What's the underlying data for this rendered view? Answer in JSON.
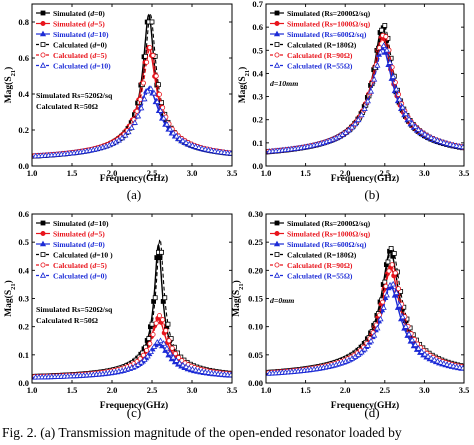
{
  "caption": "Fig. 2.   (a) Transmission magnitude of the open-ended resonator loaded by",
  "chart_data": [
    {
      "type": "line",
      "panel_label": "(a)",
      "xlabel": "Frequency(GHz)",
      "ylabel": "Mag(S21)",
      "xlim": [
        1.0,
        3.5
      ],
      "ylim": [
        0.0,
        0.9
      ],
      "xticks": [
        1.0,
        1.5,
        2.0,
        2.5,
        3.0,
        3.5
      ],
      "yticks": [
        0.0,
        0.2,
        0.4,
        0.6,
        0.8
      ],
      "tick_decimals": 1,
      "annotations": [
        "Simulated Rs=520Ω/sq",
        "Calculated R=50Ω"
      ],
      "legend": "top-left",
      "series": [
        {
          "name": "Simulated (d=0)",
          "name_parts": [
            "Simulated (",
            "d",
            "=0)"
          ],
          "color": "#000000",
          "dash": false,
          "marker": "square",
          "f0": 2.46,
          "peak": 0.84,
          "base": 0.02,
          "q": 20
        },
        {
          "name": "Simulated (d=5)",
          "name_parts": [
            "Simulated (",
            "d",
            "=5)"
          ],
          "color": "#e8141c",
          "dash": false,
          "marker": "circle",
          "f0": 2.46,
          "peak": 0.66,
          "base": 0.02,
          "q": 15
        },
        {
          "name": "Simulated (d=10)",
          "name_parts": [
            "Simulated (",
            "d",
            "=10)"
          ],
          "color": "#1c2bd6",
          "dash": false,
          "marker": "triangle",
          "f0": 2.46,
          "peak": 0.43,
          "base": 0.02,
          "q": 10
        },
        {
          "name": "Calculated (d=0)",
          "name_parts": [
            "Calculated (",
            "d",
            "=0)"
          ],
          "color": "#000000",
          "dash": true,
          "marker": "square-open",
          "f0": 2.48,
          "peak": 0.84,
          "base": 0.02,
          "q": 20
        },
        {
          "name": "Calculated (d=5)",
          "name_parts": [
            "Calculated (",
            "d",
            "=5)"
          ],
          "color": "#e8141c",
          "dash": true,
          "marker": "circle-open",
          "f0": 2.48,
          "peak": 0.66,
          "base": 0.02,
          "q": 15
        },
        {
          "name": "Calculated (d=10)",
          "name_parts": [
            "Calculated (",
            "d",
            "=10)"
          ],
          "color": "#1c2bd6",
          "dash": true,
          "marker": "triangle-open",
          "f0": 2.48,
          "peak": 0.43,
          "base": 0.02,
          "q": 10
        }
      ]
    },
    {
      "type": "line",
      "panel_label": "(b)",
      "xlabel": "Frequency(GHz)",
      "ylabel": "Mag(S21)",
      "xlim": [
        1.0,
        3.5
      ],
      "ylim": [
        0.0,
        0.7
      ],
      "xticks": [
        1.0,
        1.5,
        2.0,
        2.5,
        3.0,
        3.5
      ],
      "yticks": [
        0.0,
        0.1,
        0.2,
        0.3,
        0.4,
        0.5,
        0.6,
        0.7
      ],
      "tick_decimals": 1,
      "annotations": [
        "d=10mm"
      ],
      "legend": "top-left",
      "series": [
        {
          "name": "Simulated (Rs=2000Ω/sq)",
          "name_parts": [
            "Simulated (Rs=2000Ω/sq)"
          ],
          "color": "#000000",
          "dash": false,
          "marker": "square",
          "f0": 2.47,
          "peak": 0.6,
          "base": 0.02,
          "q": 12
        },
        {
          "name": "Simulated (Rs=1000Ω/sq)",
          "name_parts": [
            "Simulated (Rs=1000Ω/sq)"
          ],
          "color": "#e8141c",
          "dash": false,
          "marker": "circle",
          "f0": 2.47,
          "peak": 0.56,
          "base": 0.02,
          "q": 11
        },
        {
          "name": "Simulated (Rs=600Ω/sq)",
          "name_parts": [
            "Simulated (Rs=600Ω/sq)"
          ],
          "color": "#1c2bd6",
          "dash": false,
          "marker": "triangle",
          "f0": 2.47,
          "peak": 0.51,
          "base": 0.02,
          "q": 10
        },
        {
          "name": "Calculated (R=180Ω)",
          "name_parts": [
            "Calculated (R=180Ω)"
          ],
          "color": "#000000",
          "dash": true,
          "marker": "square-open",
          "f0": 2.49,
          "peak": 0.61,
          "base": 0.02,
          "q": 12
        },
        {
          "name": "Calculated (R=90Ω)",
          "name_parts": [
            "Calculated (R=90Ω)"
          ],
          "color": "#e8141c",
          "dash": true,
          "marker": "circle-open",
          "f0": 2.49,
          "peak": 0.57,
          "base": 0.02,
          "q": 11
        },
        {
          "name": "Calculated (R=55Ω)",
          "name_parts": [
            "Calculated (R=55Ω)"
          ],
          "color": "#1c2bd6",
          "dash": true,
          "marker": "triangle-open",
          "f0": 2.49,
          "peak": 0.52,
          "base": 0.02,
          "q": 10
        }
      ]
    },
    {
      "type": "line",
      "panel_label": "(c)",
      "xlabel": "Frequency(GHz)",
      "ylabel": "Mag(S21)",
      "xlim": [
        1.0,
        3.5
      ],
      "ylim": [
        0.0,
        0.6
      ],
      "xticks": [
        1.0,
        1.5,
        2.0,
        2.5,
        3.0,
        3.5
      ],
      "yticks": [
        0.0,
        0.1,
        0.2,
        0.3,
        0.4,
        0.5,
        0.6
      ],
      "tick_decimals": 1,
      "annotations": [
        "Simulated Rs=520Ω/sq",
        "Calculated R=50Ω"
      ],
      "legend": "top-left",
      "series": [
        {
          "name": "Simulated (d=10)",
          "name_parts": [
            "Simulated (",
            "d",
            "=10)"
          ],
          "color": "#000000",
          "dash": false,
          "marker": "square",
          "f0": 2.58,
          "peak": 0.49,
          "base": 0.01,
          "q": 30
        },
        {
          "name": "Simulated (d=5)",
          "name_parts": [
            "Simulated (",
            "d",
            "=5)"
          ],
          "color": "#e8141c",
          "dash": false,
          "marker": "circle",
          "f0": 2.58,
          "peak": 0.23,
          "base": 0.01,
          "q": 15
        },
        {
          "name": "Simulated (d=0)",
          "name_parts": [
            "Simulated (",
            "d",
            "=0)"
          ],
          "color": "#1c2bd6",
          "dash": false,
          "marker": "triangle",
          "f0": 2.58,
          "peak": 0.14,
          "base": 0.01,
          "q": 11
        },
        {
          "name": "Calculated (d=10)",
          "name_parts": [
            "Calculated (",
            "d",
            "=10 )"
          ],
          "color": "#000000",
          "dash": true,
          "marker": "square-open",
          "f0": 2.6,
          "peak": 0.51,
          "base": 0.01,
          "q": 30
        },
        {
          "name": "Calculated (d=5)",
          "name_parts": [
            "Calculated (",
            "d",
            "=5)"
          ],
          "color": "#e8141c",
          "dash": true,
          "marker": "circle-open",
          "f0": 2.6,
          "peak": 0.24,
          "base": 0.01,
          "q": 15
        },
        {
          "name": "Calculated (d=0)",
          "name_parts": [
            "Calculated (",
            "d",
            "=0)"
          ],
          "color": "#1c2bd6",
          "dash": true,
          "marker": "triangle-open",
          "f0": 2.6,
          "peak": 0.15,
          "base": 0.01,
          "q": 11
        }
      ]
    },
    {
      "type": "line",
      "panel_label": "(d)",
      "xlabel": "Frequency(GHz)",
      "ylabel": "Mag(S21)",
      "xlim": [
        1.0,
        3.5
      ],
      "ylim": [
        0.0,
        0.3
      ],
      "xticks": [
        1.0,
        1.5,
        2.0,
        2.5,
        3.0,
        3.5
      ],
      "yticks": [
        0.0,
        0.05,
        0.1,
        0.15,
        0.2,
        0.25,
        0.3
      ],
      "tick_decimals": 2,
      "annotations": [
        "d=0mm"
      ],
      "legend": "top-left",
      "series": [
        {
          "name": "Simulated (Rs=2000Ω/sq)",
          "name_parts": [
            "Simulated (Rs=2000Ω/sq)"
          ],
          "color": "#000000",
          "dash": false,
          "marker": "square",
          "f0": 2.57,
          "peak": 0.235,
          "base": 0.004,
          "q": 13
        },
        {
          "name": "Simulated (Rs=1000Ω/sq)",
          "name_parts": [
            "Simulated (Rs=1000Ω/sq)"
          ],
          "color": "#e8141c",
          "dash": false,
          "marker": "circle",
          "f0": 2.57,
          "peak": 0.205,
          "base": 0.004,
          "q": 12
        },
        {
          "name": "Simulated (Rs=600Ω/sq)",
          "name_parts": [
            "Simulated (Rs=600Ω/sq)"
          ],
          "color": "#1c2bd6",
          "dash": false,
          "marker": "triangle",
          "f0": 2.57,
          "peak": 0.172,
          "base": 0.004,
          "q": 11
        },
        {
          "name": "Calculated (R=180Ω)",
          "name_parts": [
            "Calculated (R=180Ω)"
          ],
          "color": "#000000",
          "dash": true,
          "marker": "square-open",
          "f0": 2.59,
          "peak": 0.24,
          "base": 0.004,
          "q": 13
        },
        {
          "name": "Calculated (R=90Ω)",
          "name_parts": [
            "Calculated (R=90Ω)"
          ],
          "color": "#e8141c",
          "dash": true,
          "marker": "circle-open",
          "f0": 2.59,
          "peak": 0.21,
          "base": 0.004,
          "q": 12
        },
        {
          "name": "Calculated (R=55Ω)",
          "name_parts": [
            "Calculated (R=55Ω)"
          ],
          "color": "#1c2bd6",
          "dash": true,
          "marker": "triangle-open",
          "f0": 2.59,
          "peak": 0.177,
          "base": 0.004,
          "q": 11
        }
      ]
    }
  ]
}
